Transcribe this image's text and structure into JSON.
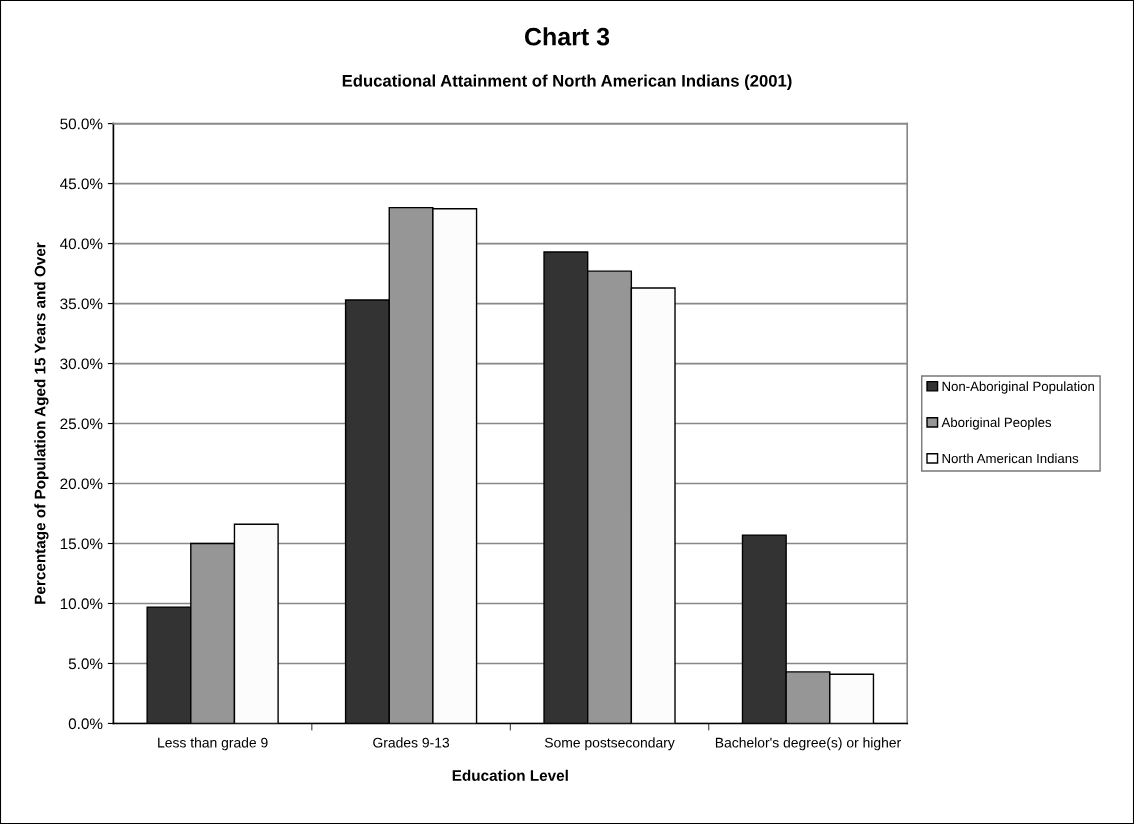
{
  "chart_data": {
    "type": "bar",
    "title": "Chart 3",
    "subtitle": "Educational Attainment of North American Indians (2001)",
    "xlabel": "Education Level",
    "ylabel": "Percentage of Population Aged 15 Years and Over",
    "categories": [
      "Less than grade 9",
      "Grades 9-13",
      "Some postsecondary",
      "Bachelor's degree(s) or higher"
    ],
    "series": [
      {
        "name": "Non-Aboriginal Population",
        "color": "#333333",
        "values": [
          9.7,
          35.3,
          39.3,
          15.7
        ]
      },
      {
        "name": "Aboriginal Peoples",
        "color": "#969696",
        "values": [
          15.0,
          43.0,
          37.7,
          4.3
        ]
      },
      {
        "name": "North American Indians",
        "color": "#fcfcfc",
        "values": [
          16.6,
          42.9,
          36.3,
          4.1
        ]
      }
    ],
    "ylim": [
      0,
      50
    ],
    "yticks": [
      {
        "value": 0,
        "label": "0.0%"
      },
      {
        "value": 5,
        "label": "5.0%"
      },
      {
        "value": 10,
        "label": "10.0%"
      },
      {
        "value": 15,
        "label": "15.0%"
      },
      {
        "value": 20,
        "label": "20.0%"
      },
      {
        "value": 25,
        "label": "25.0%"
      },
      {
        "value": 30,
        "label": "30.0%"
      },
      {
        "value": 35,
        "label": "35.0%"
      },
      {
        "value": 40,
        "label": "40.0%"
      },
      {
        "value": 45,
        "label": "45.0%"
      },
      {
        "value": 50,
        "label": "50.0%"
      }
    ],
    "grid": "y",
    "legend": "right"
  }
}
